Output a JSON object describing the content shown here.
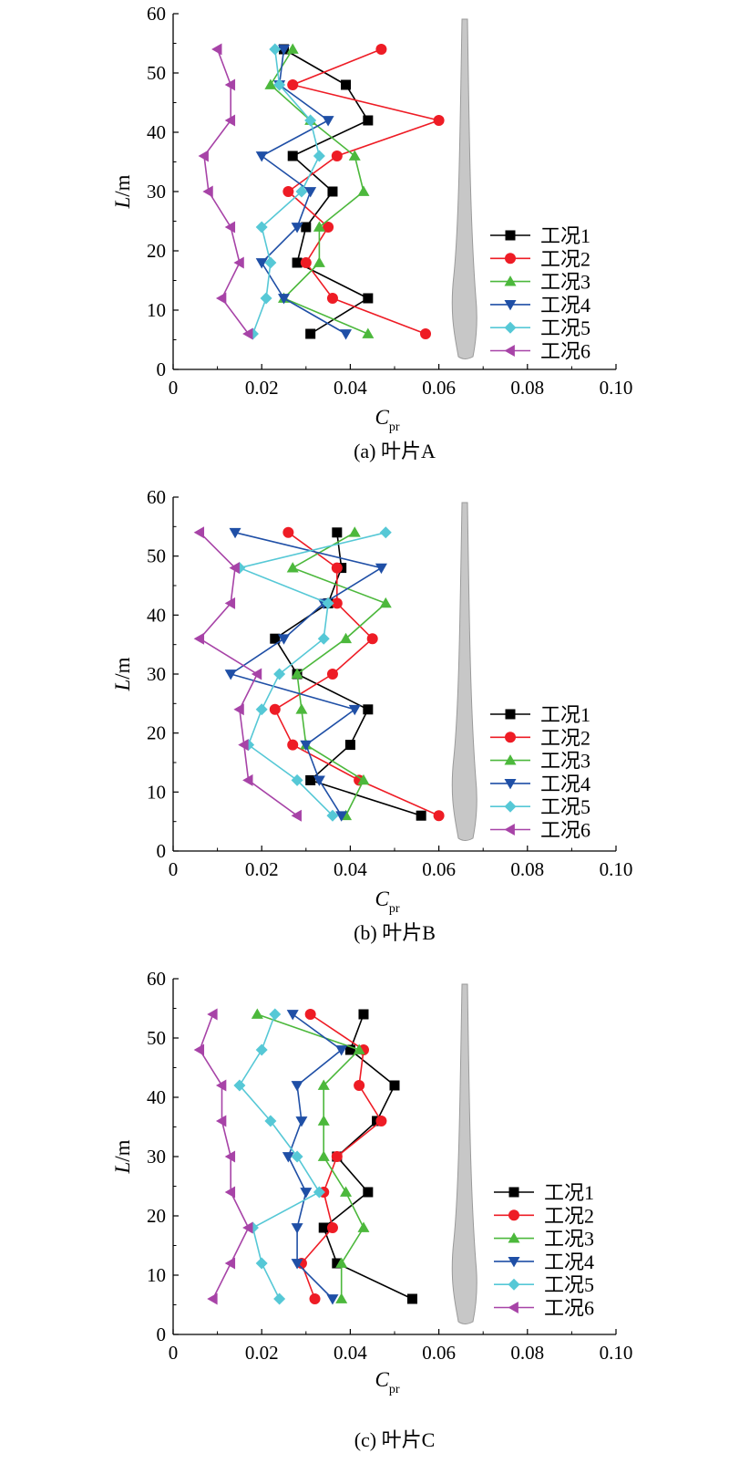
{
  "chart_data": [
    {
      "type": "line",
      "caption": "(a) 叶片A",
      "xlabel_main": "C",
      "xlabel_sub": "pr",
      "ylabel": "L/m",
      "xlim": [
        0,
        0.1
      ],
      "ylim": [
        0,
        60
      ],
      "xticks": [
        "0",
        "0.02",
        "0.04",
        "0.06",
        "0.08",
        "0.10"
      ],
      "yticks": [
        "0",
        "10",
        "20",
        "30",
        "40",
        "50",
        "60"
      ],
      "legend_position": "right-middle",
      "y": [
        6,
        12,
        18,
        24,
        30,
        36,
        42,
        48,
        54
      ],
      "series": [
        {
          "name": "工况1",
          "color": "#000000",
          "marker": "square",
          "x": [
            0.031,
            0.044,
            0.028,
            0.03,
            0.036,
            0.027,
            0.044,
            0.039,
            0.025
          ]
        },
        {
          "name": "工况2",
          "color": "#ee1c25",
          "marker": "circle",
          "x": [
            0.057,
            0.036,
            0.03,
            0.035,
            0.026,
            0.037,
            0.06,
            0.027,
            0.047
          ]
        },
        {
          "name": "工况3",
          "color": "#4cb83c",
          "marker": "triangle-up",
          "x": [
            0.044,
            0.025,
            0.033,
            0.033,
            0.043,
            0.041,
            0.031,
            0.022,
            0.027
          ]
        },
        {
          "name": "工况4",
          "color": "#1f4fa6",
          "marker": "triangle-down",
          "x": [
            0.039,
            0.025,
            0.02,
            0.028,
            0.031,
            0.02,
            0.035,
            0.024,
            0.025
          ]
        },
        {
          "name": "工况5",
          "color": "#56c8d6",
          "marker": "diamond",
          "x": [
            0.018,
            0.021,
            0.022,
            0.02,
            0.029,
            0.033,
            0.031,
            0.024,
            0.023
          ]
        },
        {
          "name": "工况6",
          "color": "#a743a7",
          "marker": "triangle-left",
          "x": [
            0.017,
            0.011,
            0.015,
            0.013,
            0.008,
            0.007,
            0.013,
            0.013,
            0.01
          ]
        }
      ]
    },
    {
      "type": "line",
      "caption": "(b) 叶片B",
      "xlabel_main": "C",
      "xlabel_sub": "pr",
      "ylabel": "L/m",
      "xlim": [
        0,
        0.1
      ],
      "ylim": [
        0,
        60
      ],
      "xticks": [
        "0",
        "0.02",
        "0.04",
        "0.06",
        "0.08",
        "0.10"
      ],
      "yticks": [
        "0",
        "10",
        "20",
        "30",
        "40",
        "50",
        "60"
      ],
      "legend_position": "right-bottom",
      "y": [
        6,
        12,
        18,
        24,
        30,
        36,
        42,
        48,
        54
      ],
      "series": [
        {
          "name": "工况1",
          "color": "#000000",
          "marker": "square",
          "x": [
            0.056,
            0.031,
            0.04,
            0.044,
            0.028,
            0.023,
            0.035,
            0.038,
            0.037
          ]
        },
        {
          "name": "工况2",
          "color": "#ee1c25",
          "marker": "circle",
          "x": [
            0.06,
            0.042,
            0.027,
            0.023,
            0.036,
            0.045,
            0.037,
            0.037,
            0.026
          ]
        },
        {
          "name": "工况3",
          "color": "#4cb83c",
          "marker": "triangle-up",
          "x": [
            0.039,
            0.043,
            0.03,
            0.029,
            0.028,
            0.039,
            0.048,
            0.027,
            0.041
          ]
        },
        {
          "name": "工况4",
          "color": "#1f4fa6",
          "marker": "triangle-down",
          "x": [
            0.038,
            0.033,
            0.03,
            0.041,
            0.013,
            0.025,
            0.034,
            0.047,
            0.014
          ]
        },
        {
          "name": "工况5",
          "color": "#56c8d6",
          "marker": "diamond",
          "x": [
            0.036,
            0.028,
            0.017,
            0.02,
            0.024,
            0.034,
            0.035,
            0.015,
            0.048
          ]
        },
        {
          "name": "工况6",
          "color": "#a743a7",
          "marker": "triangle-left",
          "x": [
            0.028,
            0.017,
            0.016,
            0.015,
            0.019,
            0.006,
            0.013,
            0.014,
            0.006
          ]
        }
      ]
    },
    {
      "type": "line",
      "caption": "(c) 叶片C",
      "xlabel_main": "C",
      "xlabel_sub": "pr",
      "ylabel": "L/m",
      "xlim": [
        0,
        0.1
      ],
      "ylim": [
        0,
        60
      ],
      "xticks": [
        "0",
        "0.02",
        "0.04",
        "0.06",
        "0.08",
        "0.10"
      ],
      "yticks": [
        "0",
        "10",
        "20",
        "30",
        "40",
        "50",
        "60"
      ],
      "legend_position": "right-bottom",
      "y": [
        6,
        12,
        18,
        24,
        30,
        36,
        42,
        48,
        54
      ],
      "series": [
        {
          "name": "工况1",
          "color": "#000000",
          "marker": "square",
          "x": [
            0.054,
            0.037,
            0.034,
            0.044,
            0.037,
            0.046,
            0.05,
            0.04,
            0.043
          ]
        },
        {
          "name": "工况2",
          "color": "#ee1c25",
          "marker": "circle",
          "x": [
            0.032,
            0.029,
            0.036,
            0.034,
            0.037,
            0.047,
            0.042,
            0.043,
            0.031
          ]
        },
        {
          "name": "工况3",
          "color": "#4cb83c",
          "marker": "triangle-up",
          "x": [
            0.038,
            0.038,
            0.043,
            0.039,
            0.034,
            0.034,
            0.034,
            0.042,
            0.019
          ]
        },
        {
          "name": "工况4",
          "color": "#1f4fa6",
          "marker": "triangle-down",
          "x": [
            0.036,
            0.028,
            0.028,
            0.03,
            0.026,
            0.029,
            0.028,
            0.038,
            0.027
          ]
        },
        {
          "name": "工况5",
          "color": "#56c8d6",
          "marker": "diamond",
          "x": [
            0.024,
            0.02,
            0.018,
            0.033,
            0.028,
            0.022,
            0.015,
            0.02,
            0.023
          ]
        },
        {
          "name": "工况6",
          "color": "#a743a7",
          "marker": "triangle-left",
          "x": [
            0.009,
            0.013,
            0.017,
            0.013,
            0.013,
            0.011,
            0.011,
            0.006,
            0.009
          ]
        }
      ]
    }
  ]
}
